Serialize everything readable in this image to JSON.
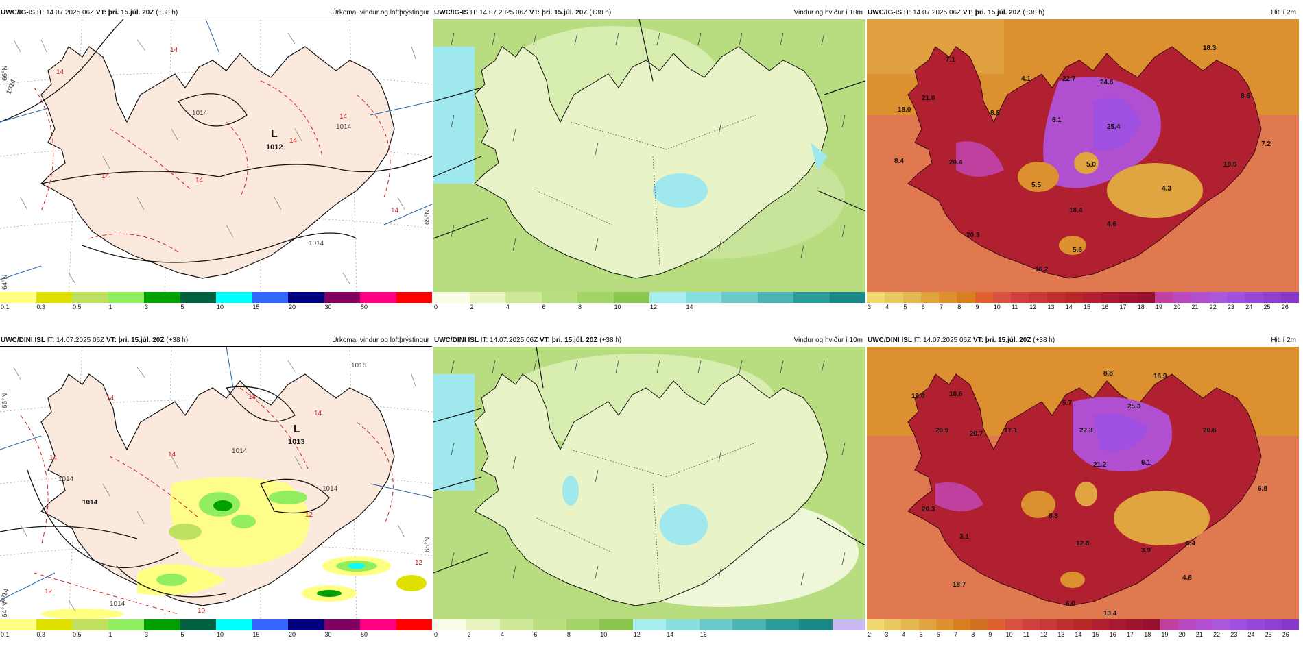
{
  "panels": [
    {
      "id": "p1",
      "model": "UWC/IG-IS",
      "it_label": "IT:",
      "init_time": "14.07.2025 06Z",
      "vt_label": "VT:",
      "valid_time": "þri. 15.júl. 20Z",
      "lead": "(+38 h)",
      "product": "Úrkoma, vindur og loftþrýstingur",
      "low_letter": "L",
      "low_value": "1012",
      "isobar_labels": [
        "1014",
        "1014",
        "1014",
        "1014"
      ],
      "red_labels": [
        "14",
        "14",
        "14",
        "14",
        "14",
        "14",
        "14"
      ],
      "grid_labels": [
        "66°N",
        "65°N",
        "64°N"
      ],
      "colorbar": {
        "colors": [
          "#ffff80",
          "#e0e000",
          "#c0e060",
          "#90ee60",
          "#00a000",
          "#006040",
          "#00ffff",
          "#3366ff",
          "#000080",
          "#800060",
          "#ff0080",
          "#ff0000"
        ],
        "ticks": [
          "0.1",
          "0.3",
          "0.5",
          "1",
          "3",
          "5",
          "10",
          "15",
          "20",
          "30",
          "50"
        ]
      }
    },
    {
      "id": "p2",
      "model": "UWC/IG-IS",
      "it_label": "IT:",
      "init_time": "14.07.2025 06Z",
      "vt_label": "VT:",
      "valid_time": "þri. 15.júl. 20Z",
      "lead": "(+38 h)",
      "product": "Vindur og hviður í 10m",
      "colorbar": {
        "colors": [
          "#fafde8",
          "#e8f4c0",
          "#cfe89a",
          "#b8de80",
          "#a2d468",
          "#8ac650",
          "#a8eef0",
          "#88dede",
          "#6acaca",
          "#4cb4b4",
          "#2a9a9a",
          "#1a8888"
        ],
        "ticks": [
          "0",
          "2",
          "4",
          "6",
          "8",
          "10",
          "12",
          "14"
        ]
      }
    },
    {
      "id": "p3",
      "model": "UWC/IG-IS",
      "it_label": "IT:",
      "init_time": "14.07.2025 06Z",
      "vt_label": "VT:",
      "valid_time": "þri. 15.júl. 20Z",
      "lead": "(+38 h)",
      "product": "Hiti í 2m",
      "temps": [
        "18.3",
        "7.1",
        "4.1",
        "22.7",
        "24.6",
        "8.6",
        "21.0",
        "18.0",
        "8.8",
        "6.1",
        "25.4",
        "7.2",
        "8.4",
        "20.4",
        "5.0",
        "19.6",
        "5.5",
        "4.3",
        "18.4",
        "4.6",
        "20.3",
        "5.6",
        "16.2"
      ],
      "colorbar": {
        "colors": [
          "#f0d870",
          "#e8c860",
          "#e4b850",
          "#e0a440",
          "#dc9030",
          "#d88020",
          "#e06030",
          "#d85040",
          "#d04040",
          "#c83a3a",
          "#c02f30",
          "#b82828",
          "#b02030",
          "#a81830",
          "#a01430",
          "#981030",
          "#c040a0",
          "#b848c0",
          "#b050d0",
          "#a858d8",
          "#a050e0",
          "#9848d8",
          "#9040d0",
          "#8838c8"
        ],
        "ticks": [
          "3",
          "4",
          "5",
          "6",
          "7",
          "8",
          "9",
          "10",
          "11",
          "12",
          "13",
          "14",
          "15",
          "16",
          "17",
          "18",
          "19",
          "20",
          "21",
          "22",
          "23",
          "24",
          "25",
          "26"
        ]
      }
    },
    {
      "id": "p4",
      "model": "UWC/DINI ISL",
      "it_label": "IT:",
      "init_time": "14.07.2025 06Z",
      "vt_label": "VT:",
      "valid_time": "þri. 15.júl. 20Z",
      "lead": "(+38 h)",
      "product": "Úrkoma, vindur og loftþrýstingur",
      "low_letter": "L",
      "low_value": "1013",
      "isobar_labels": [
        "1016",
        "1014",
        "1014",
        "1014",
        "1014",
        "1014"
      ],
      "red_labels": [
        "14",
        "14",
        "14",
        "14",
        "14",
        "12",
        "12",
        "12",
        "10"
      ],
      "grid_labels": [
        "66°N",
        "65°N",
        "64°N"
      ],
      "extra_label": "1014",
      "colorbar": {
        "colors": [
          "#ffff80",
          "#e0e000",
          "#c0e060",
          "#90ee60",
          "#00a000",
          "#006040",
          "#00ffff",
          "#3366ff",
          "#000080",
          "#800060",
          "#ff0080",
          "#ff0000"
        ],
        "ticks": [
          "0.1",
          "0.3",
          "0.5",
          "1",
          "3",
          "5",
          "10",
          "15",
          "20",
          "30",
          "50"
        ]
      }
    },
    {
      "id": "p5",
      "model": "UWC/DINI ISL",
      "it_label": "IT:",
      "init_time": "14.07.2025 06Z",
      "vt_label": "VT:",
      "valid_time": "þri. 15.júl. 20Z",
      "lead": "(+38 h)",
      "product": "Vindur og hviður í 10m",
      "colorbar": {
        "colors": [
          "#fafde8",
          "#e8f4c0",
          "#cfe89a",
          "#b8de80",
          "#a2d468",
          "#8ac650",
          "#a8eef0",
          "#88dede",
          "#6acaca",
          "#4cb4b4",
          "#2a9a9a",
          "#1a8888",
          "#c8b8f0"
        ],
        "ticks": [
          "0",
          "2",
          "4",
          "6",
          "8",
          "10",
          "12",
          "14",
          "16"
        ]
      }
    },
    {
      "id": "p6",
      "model": "UWC/DINI ISL",
      "it_label": "IT:",
      "init_time": "14.07.2025 06Z",
      "vt_label": "VT:",
      "valid_time": "þri. 15.júl. 20Z",
      "lead": "(+38 h)",
      "product": "Hiti í 2m",
      "temps": [
        "8.8",
        "16.9",
        "19.0",
        "18.6",
        "5.7",
        "25.3",
        "20.9",
        "20.7",
        "17.1",
        "22.3",
        "20.6",
        "21.2",
        "6.1",
        "6.8",
        "20.3",
        "8.3",
        "3.1",
        "12.8",
        "3.9",
        "6.4",
        "18.7",
        "4.8",
        "6.0",
        "13.4"
      ],
      "colorbar": {
        "colors": [
          "#f0d870",
          "#e8c860",
          "#e4b850",
          "#e0a440",
          "#dc9030",
          "#d88020",
          "#d07020",
          "#e06030",
          "#d85040",
          "#d04040",
          "#c83a3a",
          "#c02f30",
          "#b82828",
          "#b02030",
          "#a81830",
          "#a01430",
          "#981030",
          "#c040a0",
          "#b848c0",
          "#b050d0",
          "#a858d8",
          "#a050e0",
          "#9848d8",
          "#9040d0",
          "#8838c8"
        ],
        "ticks": [
          "2",
          "3",
          "4",
          "5",
          "6",
          "7",
          "8",
          "9",
          "10",
          "11",
          "12",
          "13",
          "14",
          "15",
          "16",
          "17",
          "18",
          "19",
          "20",
          "21",
          "22",
          "23",
          "24",
          "25",
          "26"
        ]
      }
    }
  ]
}
